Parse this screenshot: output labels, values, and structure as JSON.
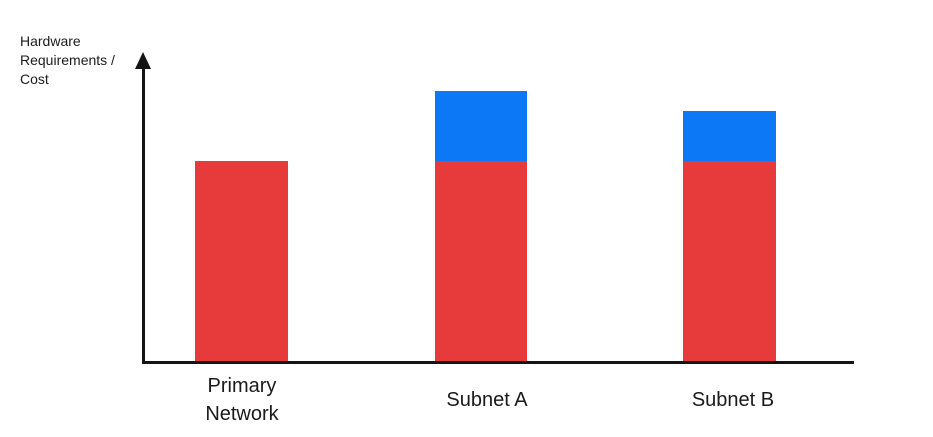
{
  "page": {
    "background": "#ffffff"
  },
  "chart_data": {
    "type": "bar",
    "stacked": true,
    "title": "",
    "ylabel": "Hardware Requirements / Cost",
    "xlabel": "",
    "categories": [
      "Primary Network",
      "Subnet A",
      "Subnet B"
    ],
    "series": [
      {
        "name": "red-segment",
        "color": "#E73B3B",
        "values": [
          200,
          200,
          200
        ]
      },
      {
        "name": "blue-segment",
        "color": "#0D78F5",
        "values": [
          0,
          70,
          50
        ]
      }
    ],
    "value_axis": {
      "tick_labels": "none",
      "units": "relative height (axis is unlabeled; values are pixel-scale estimates)",
      "arrowhead": true
    },
    "legend": "none",
    "grid": false,
    "colors": {
      "axis": "#141414",
      "text": "#1a1a1c"
    }
  }
}
